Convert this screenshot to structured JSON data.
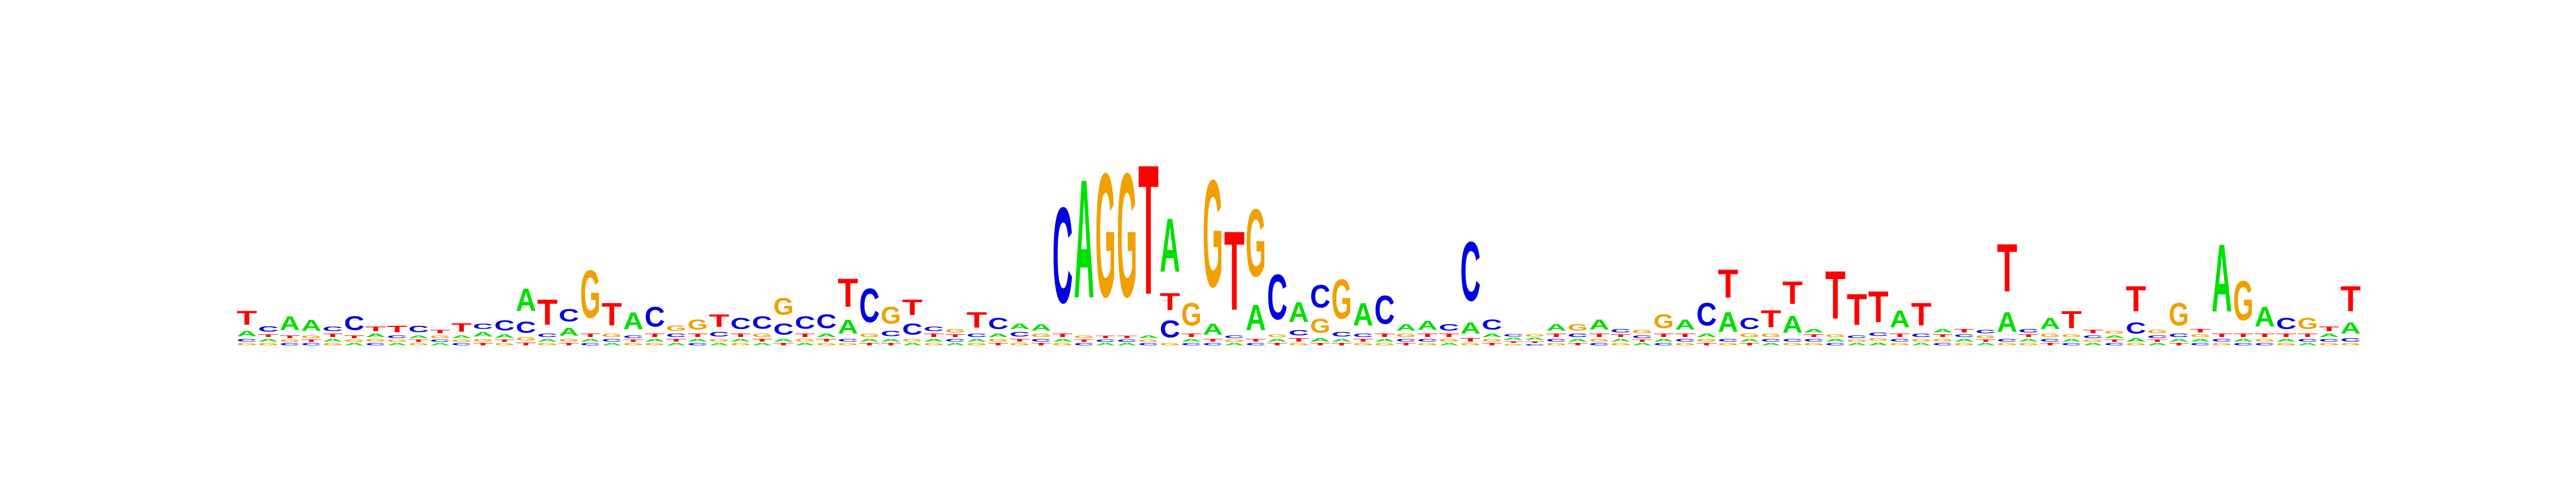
{
  "chart_data": {
    "type": "sequence_logo",
    "alphabet": [
      "A",
      "C",
      "G",
      "T"
    ],
    "colors": {
      "A": "#00e000",
      "C": "#0000e0",
      "G": "#f0a000",
      "T": "#ff0000"
    },
    "columns": [
      {
        "A": 0.1,
        "C": 0.05,
        "G": 0.04,
        "T": 0.25
      },
      {
        "A": 0.05,
        "C": 0.1,
        "G": 0.04,
        "T": 0.05
      },
      {
        "A": 0.25,
        "C": 0.04,
        "G": 0.04,
        "T": 0.05
      },
      {
        "A": 0.2,
        "C": 0.04,
        "G": 0.05,
        "T": 0.04
      },
      {
        "A": 0.05,
        "C": 0.08,
        "G": 0.04,
        "T": 0.06
      },
      {
        "A": 0.04,
        "C": 0.25,
        "G": 0.04,
        "T": 0.05
      },
      {
        "A": 0.06,
        "C": 0.04,
        "G": 0.05,
        "T": 0.08
      },
      {
        "A": 0.04,
        "C": 0.05,
        "G": 0.04,
        "T": 0.12
      },
      {
        "A": 0.05,
        "C": 0.12,
        "G": 0.04,
        "T": 0.04
      },
      {
        "A": 0.04,
        "C": 0.04,
        "G": 0.05,
        "T": 0.06
      },
      {
        "A": 0.05,
        "C": 0.04,
        "G": 0.04,
        "T": 0.15
      },
      {
        "A": 0.08,
        "C": 0.1,
        "G": 0.05,
        "T": 0.04
      },
      {
        "A": 0.06,
        "C": 0.18,
        "G": 0.04,
        "T": 0.04
      },
      {
        "A": 0.4,
        "C": 0.2,
        "G": 0.06,
        "T": 0.05
      },
      {
        "A": 0.05,
        "C": 0.06,
        "G": 0.04,
        "T": 0.45
      },
      {
        "A": 0.14,
        "C": 0.22,
        "G": 0.05,
        "T": 0.04
      },
      {
        "A": 0.05,
        "C": 0.04,
        "G": 0.85,
        "T": 0.06
      },
      {
        "A": 0.04,
        "C": 0.05,
        "G": 0.06,
        "T": 0.4
      },
      {
        "A": 0.3,
        "C": 0.05,
        "G": 0.04,
        "T": 0.04
      },
      {
        "A": 0.05,
        "C": 0.35,
        "G": 0.04,
        "T": 0.06
      },
      {
        "A": 0.04,
        "C": 0.06,
        "G": 0.1,
        "T": 0.05
      },
      {
        "A": 0.05,
        "C": 0.04,
        "G": 0.18,
        "T": 0.06
      },
      {
        "A": 0.04,
        "C": 0.08,
        "G": 0.05,
        "T": 0.22
      },
      {
        "A": 0.05,
        "C": 0.2,
        "G": 0.04,
        "T": 0.06
      },
      {
        "A": 0.04,
        "C": 0.22,
        "G": 0.06,
        "T": 0.05
      },
      {
        "A": 0.05,
        "C": 0.2,
        "G": 0.3,
        "T": 0.04
      },
      {
        "A": 0.04,
        "C": 0.22,
        "G": 0.05,
        "T": 0.06
      },
      {
        "A": 0.06,
        "C": 0.25,
        "G": 0.04,
        "T": 0.05
      },
      {
        "A": 0.25,
        "C": 0.05,
        "G": 0.04,
        "T": 0.5
      },
      {
        "A": 0.05,
        "C": 0.6,
        "G": 0.06,
        "T": 0.04
      },
      {
        "A": 0.05,
        "C": 0.1,
        "G": 0.3,
        "T": 0.04
      },
      {
        "A": 0.04,
        "C": 0.2,
        "G": 0.05,
        "T": 0.28
      },
      {
        "A": 0.05,
        "C": 0.08,
        "G": 0.04,
        "T": 0.06
      },
      {
        "A": 0.04,
        "C": 0.05,
        "G": 0.06,
        "T": 0.05
      },
      {
        "A": 0.05,
        "C": 0.06,
        "G": 0.04,
        "T": 0.28
      },
      {
        "A": 0.06,
        "C": 0.2,
        "G": 0.05,
        "T": 0.04
      },
      {
        "A": 0.1,
        "C": 0.08,
        "G": 0.04,
        "T": 0.05
      },
      {
        "A": 0.12,
        "C": 0.05,
        "G": 0.06,
        "T": 0.04
      },
      {
        "A": 0.05,
        "C": 1.7,
        "G": 0.04,
        "T": 0.06
      },
      {
        "A": 2.1,
        "C": 0.04,
        "G": 0.05,
        "T": 0.04
      },
      {
        "A": 0.04,
        "C": 0.04,
        "G": 2.2,
        "T": 0.04
      },
      {
        "A": 0.04,
        "C": 0.04,
        "G": 2.2,
        "T": 0.04
      },
      {
        "A": 0.05,
        "C": 0.04,
        "G": 0.04,
        "T": 2.3
      },
      {
        "A": 0.95,
        "C": 0.3,
        "G": 0.04,
        "T": 0.3
      },
      {
        "A": 0.05,
        "C": 0.04,
        "G": 0.4,
        "T": 0.06
      },
      {
        "A": 0.2,
        "C": 0.04,
        "G": 1.9,
        "T": 0.05
      },
      {
        "A": 0.04,
        "C": 0.05,
        "G": 0.04,
        "T": 1.4
      },
      {
        "A": 0.45,
        "C": 0.04,
        "G": 1.2,
        "T": 0.05
      },
      {
        "A": 0.05,
        "C": 0.8,
        "G": 0.05,
        "T": 0.04
      },
      {
        "A": 0.35,
        "C": 0.1,
        "G": 0.04,
        "T": 0.06
      },
      {
        "A": 0.06,
        "C": 0.4,
        "G": 0.25,
        "T": 0.04
      },
      {
        "A": 0.05,
        "C": 0.08,
        "G": 0.7,
        "T": 0.04
      },
      {
        "A": 0.4,
        "C": 0.06,
        "G": 0.04,
        "T": 0.05
      },
      {
        "A": 0.05,
        "C": 0.5,
        "G": 0.04,
        "T": 0.06
      },
      {
        "A": 0.12,
        "C": 0.05,
        "G": 0.06,
        "T": 0.04
      },
      {
        "A": 0.16,
        "C": 0.05,
        "G": 0.04,
        "T": 0.06
      },
      {
        "A": 0.04,
        "C": 0.12,
        "G": 0.05,
        "T": 0.06
      },
      {
        "A": 0.2,
        "C": 1.05,
        "G": 0.04,
        "T": 0.06
      },
      {
        "A": 0.06,
        "C": 0.18,
        "G": 0.05,
        "T": 0.04
      },
      {
        "A": 0.04,
        "C": 0.04,
        "G": 0.03,
        "T": 0.03
      },
      {
        "A": 0.04,
        "C": 0.03,
        "G": 0.04,
        "T": 0.03
      },
      {
        "A": 0.12,
        "C": 0.05,
        "G": 0.04,
        "T": 0.06
      },
      {
        "A": 0.05,
        "C": 0.06,
        "G": 0.12,
        "T": 0.04
      },
      {
        "A": 0.18,
        "C": 0.04,
        "G": 0.05,
        "T": 0.06
      },
      {
        "A": 0.05,
        "C": 0.06,
        "G": 0.04,
        "T": 0.05
      },
      {
        "A": 0.04,
        "C": 0.05,
        "G": 0.06,
        "T": 0.04
      },
      {
        "A": 0.05,
        "C": 0.04,
        "G": 0.25,
        "T": 0.06
      },
      {
        "A": 0.18,
        "C": 0.05,
        "G": 0.04,
        "T": 0.06
      },
      {
        "A": 0.06,
        "C": 0.4,
        "G": 0.05,
        "T": 0.04
      },
      {
        "A": 0.35,
        "C": 0.05,
        "G": 0.04,
        "T": 0.5
      },
      {
        "A": 0.05,
        "C": 0.2,
        "G": 0.06,
        "T": 0.04
      },
      {
        "A": 0.04,
        "C": 0.05,
        "G": 0.06,
        "T": 0.3
      },
      {
        "A": 0.3,
        "C": 0.05,
        "G": 0.04,
        "T": 0.4
      },
      {
        "A": 0.06,
        "C": 0.05,
        "G": 0.04,
        "T": 0.05
      },
      {
        "A": 0.05,
        "C": 0.04,
        "G": 0.05,
        "T": 0.85
      },
      {
        "A": 0.04,
        "C": 0.05,
        "G": 0.04,
        "T": 0.55
      },
      {
        "A": 0.05,
        "C": 0.06,
        "G": 0.05,
        "T": 0.55
      },
      {
        "A": 0.3,
        "C": 0.05,
        "G": 0.04,
        "T": 0.06
      },
      {
        "A": 0.04,
        "C": 0.06,
        "G": 0.05,
        "T": 0.4
      },
      {
        "A": 0.06,
        "C": 0.04,
        "G": 0.05,
        "T": 0.05
      },
      {
        "A": 0.05,
        "C": 0.05,
        "G": 0.04,
        "T": 0.06
      },
      {
        "A": 0.04,
        "C": 0.06,
        "G": 0.05,
        "T": 0.04
      },
      {
        "A": 0.35,
        "C": 0.05,
        "G": 0.04,
        "T": 0.85
      },
      {
        "A": 0.05,
        "C": 0.06,
        "G": 0.04,
        "T": 0.05
      },
      {
        "A": 0.2,
        "C": 0.05,
        "G": 0.06,
        "T": 0.04
      },
      {
        "A": 0.05,
        "C": 0.04,
        "G": 0.05,
        "T": 0.3
      },
      {
        "A": 0.04,
        "C": 0.05,
        "G": 0.04,
        "T": 0.06
      },
      {
        "A": 0.05,
        "C": 0.04,
        "G": 0.05,
        "T": 0.04
      },
      {
        "A": 0.06,
        "C": 0.2,
        "G": 0.04,
        "T": 0.45
      },
      {
        "A": 0.04,
        "C": 0.05,
        "G": 0.06,
        "T": 0.04
      },
      {
        "A": 0.05,
        "C": 0.06,
        "G": 0.4,
        "T": 0.04
      },
      {
        "A": 0.05,
        "C": 0.04,
        "G": 0.05,
        "T": 0.06
      },
      {
        "A": 1.2,
        "C": 0.05,
        "G": 0.04,
        "T": 0.06
      },
      {
        "A": 0.05,
        "C": 0.04,
        "G": 0.7,
        "T": 0.06
      },
      {
        "A": 0.35,
        "C": 0.04,
        "G": 0.05,
        "T": 0.06
      },
      {
        "A": 0.05,
        "C": 0.2,
        "G": 0.04,
        "T": 0.06
      },
      {
        "A": 0.04,
        "C": 0.05,
        "G": 0.2,
        "T": 0.06
      },
      {
        "A": 0.06,
        "C": 0.05,
        "G": 0.04,
        "T": 0.08
      },
      {
        "A": 0.2,
        "C": 0.06,
        "G": 0.04,
        "T": 0.45
      }
    ]
  }
}
